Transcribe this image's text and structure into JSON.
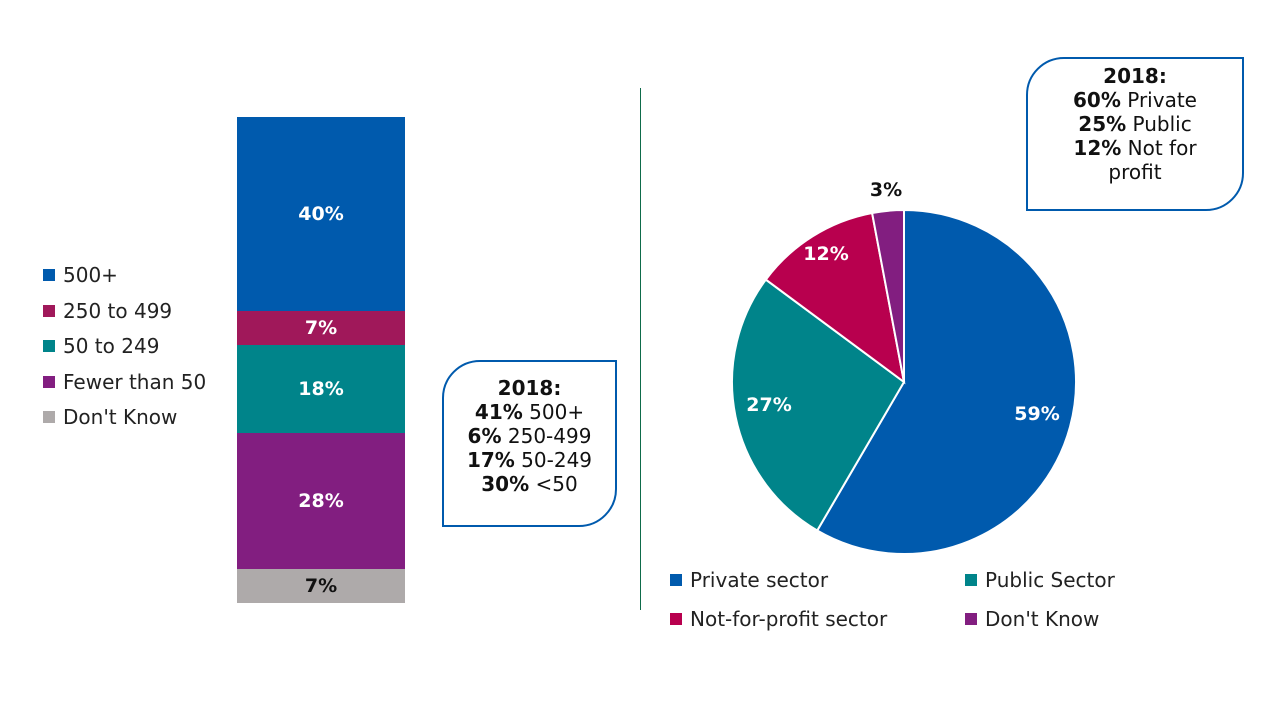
{
  "chart_data": [
    {
      "type": "bar",
      "stacked": true,
      "series": [
        {
          "name": "500+",
          "value": 40,
          "label": "40%",
          "color": "#005AAD"
        },
        {
          "name": "250 to 499",
          "value": 7,
          "label": "7%",
          "color": "#A0185A"
        },
        {
          "name": "50 to 249",
          "value": 18,
          "label": "18%",
          "color": "#00848A"
        },
        {
          "name": "Fewer than 50",
          "value": 28,
          "label": "28%",
          "color": "#821E80"
        },
        {
          "name": "Don't Know",
          "value": 7,
          "label": "7%",
          "color": "#AEAAAA"
        }
      ],
      "legend_position": "left",
      "callout": {
        "title": "2018:",
        "lines": [
          {
            "value": "41%",
            "text": " 500+"
          },
          {
            "value": "6%",
            "text": " 250-499"
          },
          {
            "value": "17%",
            "text": " 50-249"
          },
          {
            "value": "30%",
            "text": " <50"
          }
        ]
      }
    },
    {
      "type": "pie",
      "slices": [
        {
          "name": "Private sector",
          "value": 59,
          "label": "59%",
          "color": "#005AAD"
        },
        {
          "name": "Public Sector",
          "value": 27,
          "label": "27%",
          "color": "#00848A"
        },
        {
          "name": "Not-for-profit sector",
          "value": 12,
          "label": "12%",
          "color": "#B8004E"
        },
        {
          "name": "Don't Know",
          "value": 3,
          "label": "3%",
          "color": "#821E80"
        }
      ],
      "legend_position": "bottom",
      "callout": {
        "title": "2018:",
        "lines": [
          {
            "value": "60%",
            "text": " Private"
          },
          {
            "value": "25%",
            "text": " Public"
          },
          {
            "value": "12%",
            "text": " Not for profit"
          }
        ]
      }
    }
  ]
}
